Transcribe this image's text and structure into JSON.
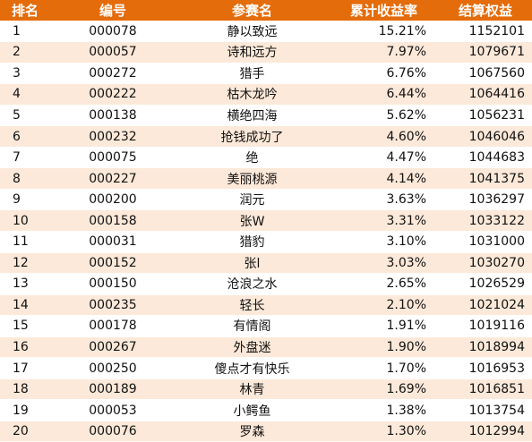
{
  "accent_color": "#e46c0a",
  "stripe_color": "#fde9d9",
  "headers": [
    "排名",
    "编号",
    "参赛名",
    "累计收益率",
    "结算权益"
  ],
  "rows": [
    {
      "rank": "1",
      "id": "000078",
      "name": "静以致远",
      "ret": "15.21%",
      "eq": "1152101"
    },
    {
      "rank": "2",
      "id": "000057",
      "name": "诗和远方",
      "ret": "7.97%",
      "eq": "1079671"
    },
    {
      "rank": "3",
      "id": "000272",
      "name": "猎手",
      "ret": "6.76%",
      "eq": "1067560"
    },
    {
      "rank": "4",
      "id": "000222",
      "name": "枯木龙吟",
      "ret": "6.44%",
      "eq": "1064416"
    },
    {
      "rank": "5",
      "id": "000138",
      "name": "横绝四海",
      "ret": "5.62%",
      "eq": "1056231"
    },
    {
      "rank": "6",
      "id": "000232",
      "name": "抢钱成功了",
      "ret": "4.60%",
      "eq": "1046046"
    },
    {
      "rank": "7",
      "id": "000075",
      "name": "绝",
      "ret": "4.47%",
      "eq": "1044683"
    },
    {
      "rank": "8",
      "id": "000227",
      "name": "美丽桃源",
      "ret": "4.14%",
      "eq": "1041375"
    },
    {
      "rank": "9",
      "id": "000200",
      "name": "润元",
      "ret": "3.63%",
      "eq": "1036297"
    },
    {
      "rank": "10",
      "id": "000158",
      "name": "张W",
      "ret": "3.31%",
      "eq": "1033122"
    },
    {
      "rank": "11",
      "id": "000031",
      "name": "猎豹",
      "ret": "3.10%",
      "eq": "1031000"
    },
    {
      "rank": "12",
      "id": "000152",
      "name": "张l",
      "ret": "3.03%",
      "eq": "1030270"
    },
    {
      "rank": "13",
      "id": "000150",
      "name": "沧浪之水",
      "ret": "2.65%",
      "eq": "1026529"
    },
    {
      "rank": "14",
      "id": "000235",
      "name": "轻长",
      "ret": "2.10%",
      "eq": "1021024"
    },
    {
      "rank": "15",
      "id": "000178",
      "name": "有情阁",
      "ret": "1.91%",
      "eq": "1019116"
    },
    {
      "rank": "16",
      "id": "000267",
      "name": "外盘迷",
      "ret": "1.90%",
      "eq": "1018994"
    },
    {
      "rank": "17",
      "id": "000250",
      "name": "傻点才有快乐",
      "ret": "1.70%",
      "eq": "1016953"
    },
    {
      "rank": "18",
      "id": "000189",
      "name": "林青",
      "ret": "1.69%",
      "eq": "1016851"
    },
    {
      "rank": "19",
      "id": "000053",
      "name": "小鳄鱼",
      "ret": "1.38%",
      "eq": "1013754"
    },
    {
      "rank": "20",
      "id": "000076",
      "name": "罗森",
      "ret": "1.30%",
      "eq": "1012994"
    }
  ]
}
